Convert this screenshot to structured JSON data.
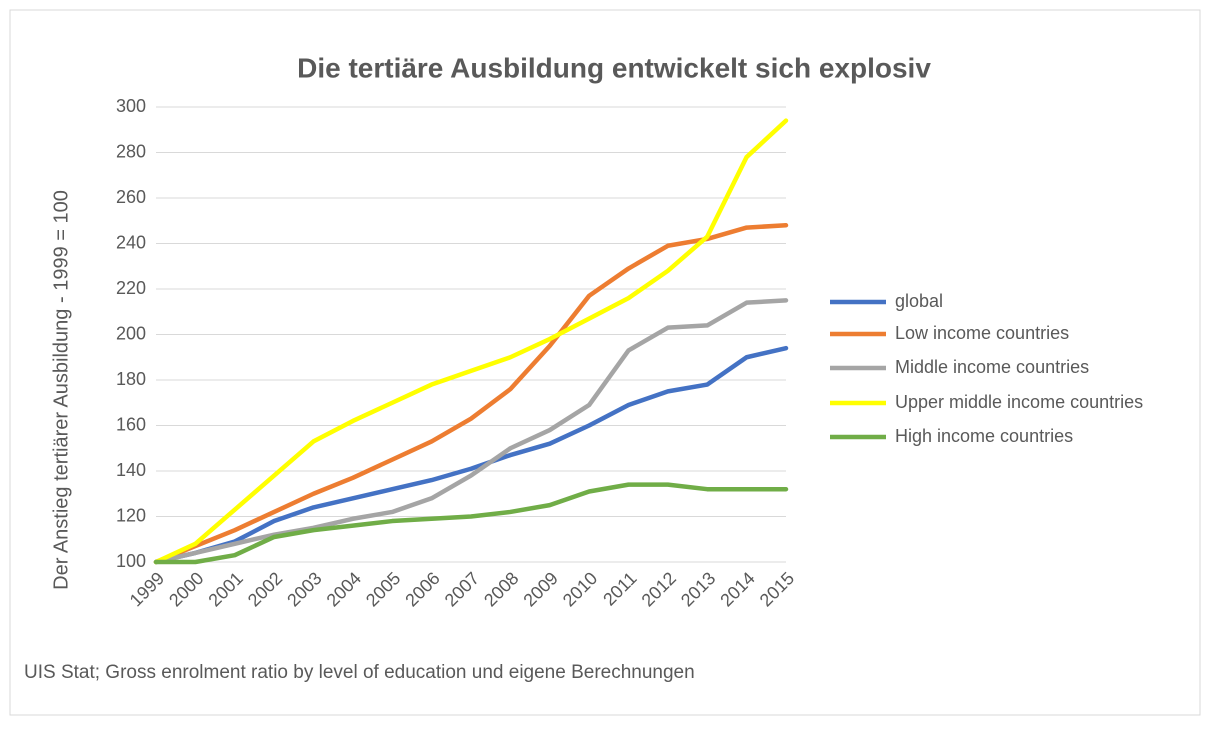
{
  "chart_data": {
    "type": "line",
    "title": "Die tertiäre Ausbildung entwickelt sich explosiv",
    "y_label": "Der Anstieg tertiärer Ausbildung - 1999 = 100",
    "source": "UIS Stat; Gross enrolment ratio by level of education und eigene Berechnungen",
    "categories": [
      "1999",
      "2000",
      "2001",
      "2002",
      "2003",
      "2004",
      "2005",
      "2006",
      "2007",
      "2008",
      "2009",
      "2010",
      "2011",
      "2012",
      "2013",
      "2014",
      "2015"
    ],
    "series": [
      {
        "name": "global",
        "color": "#4472c4",
        "values": [
          100,
          104,
          109,
          118,
          124,
          128,
          132,
          136,
          141,
          147,
          152,
          160,
          169,
          175,
          178,
          190,
          194
        ]
      },
      {
        "name": "Low income countries",
        "color": "#ed7d31",
        "values": [
          100,
          107,
          114,
          122,
          130,
          137,
          145,
          153,
          163,
          176,
          195,
          217,
          229,
          239,
          242,
          247,
          248
        ]
      },
      {
        "name": "Middle income countries",
        "color": "#a5a5a5",
        "values": [
          100,
          104,
          108,
          112,
          115,
          119,
          122,
          128,
          138,
          150,
          158,
          169,
          193,
          203,
          204,
          214,
          215
        ]
      },
      {
        "name": "Upper middle income countries",
        "color": "#ffff00",
        "values": [
          100,
          108,
          123,
          138,
          153,
          162,
          170,
          178,
          184,
          190,
          198,
          207,
          216,
          228,
          243,
          278,
          294
        ]
      },
      {
        "name": "High income countries",
        "color": "#70ad47",
        "values": [
          100,
          100,
          103,
          111,
          114,
          116,
          118,
          119,
          120,
          122,
          125,
          131,
          134,
          134,
          132,
          132,
          132
        ]
      }
    ],
    "ylim": [
      100,
      300
    ],
    "yticks": [
      100,
      120,
      140,
      160,
      180,
      200,
      220,
      240,
      260,
      280,
      300
    ],
    "grid": true,
    "legend": "right"
  }
}
